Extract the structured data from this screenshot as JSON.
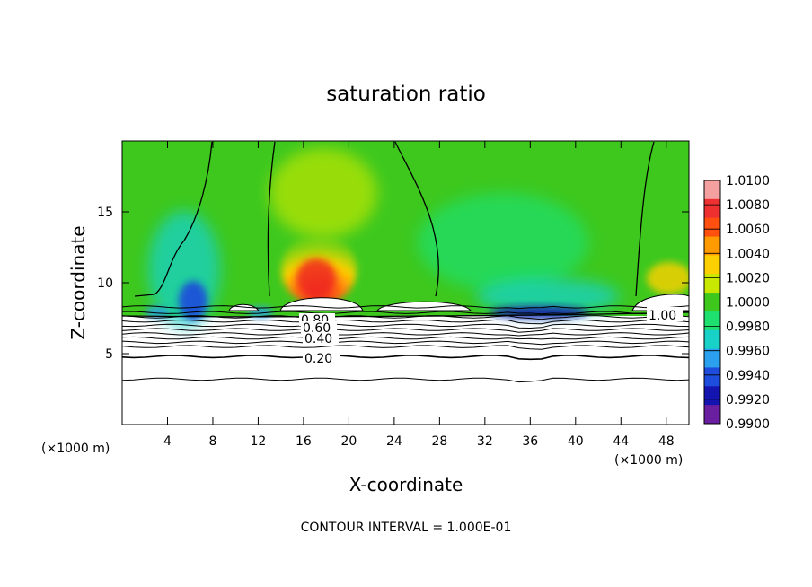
{
  "chart_data": {
    "type": "heatmap",
    "title": "saturation ratio",
    "xlabel": "X-coordinate",
    "ylabel": "Z-coordinate",
    "x_unit_left": "(×1000 m)",
    "x_unit_right": "(×1000 m)",
    "footer": "CONTOUR INTERVAL = 1.000E-01",
    "xlim": [
      0,
      50
    ],
    "ylim": [
      0,
      20
    ],
    "x_ticks": [
      4,
      8,
      12,
      16,
      20,
      24,
      28,
      32,
      36,
      40,
      44,
      48
    ],
    "y_ticks": [
      5,
      10,
      15
    ],
    "colorbar": {
      "levels": [
        "1.0100",
        "1.0080",
        "1.0060",
        "1.0040",
        "1.0020",
        "1.0000",
        "0.9980",
        "0.9960",
        "0.9940",
        "0.9920",
        "0.9900"
      ],
      "colors": [
        "#f4a0a0",
        "#ee3030",
        "#ff5010",
        "#ff9a00",
        "#ffd000",
        "#c8e800",
        "#3ec81e",
        "#1ee06e",
        "#18d2c8",
        "#2aa0ee",
        "#1e4cdc",
        "#1414b0",
        "#6a1ea0"
      ]
    },
    "contour_labels": [
      "1.00",
      "0.80",
      "0.60",
      "0.40",
      "0.20"
    ]
  }
}
